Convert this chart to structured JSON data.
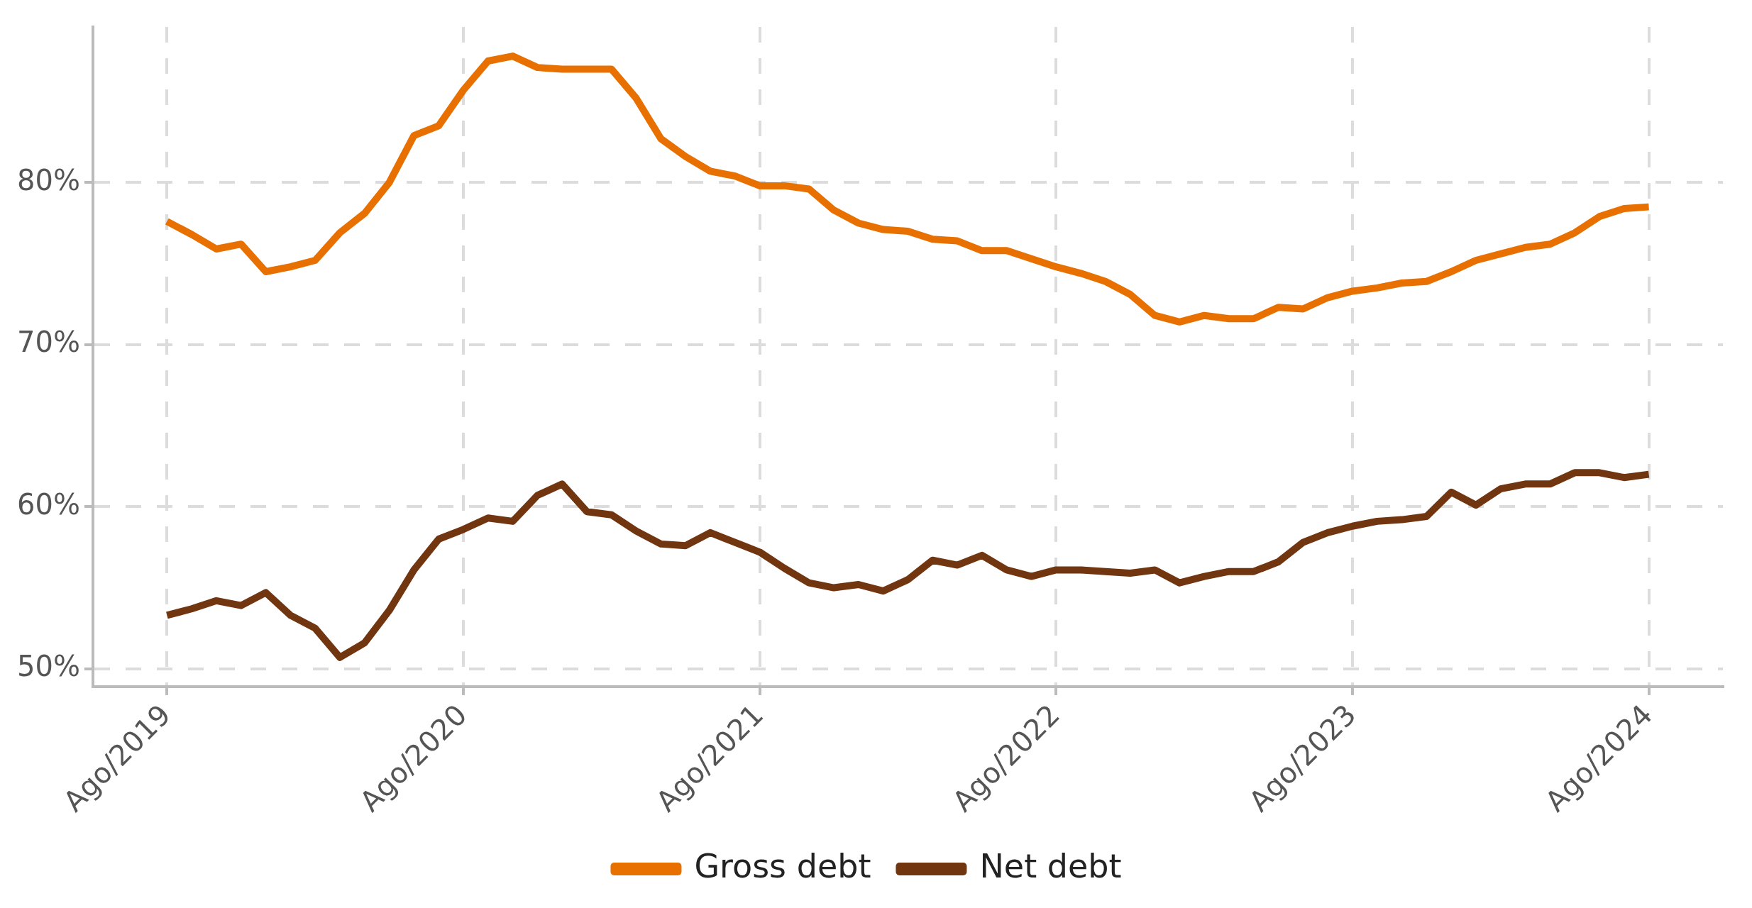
{
  "chart_data": {
    "type": "line",
    "x": [
      "2019-08",
      "2019-09",
      "2019-10",
      "2019-11",
      "2019-12",
      "2020-01",
      "2020-02",
      "2020-03",
      "2020-04",
      "2020-05",
      "2020-06",
      "2020-07",
      "2020-08",
      "2020-09",
      "2020-10",
      "2020-11",
      "2020-12",
      "2021-01",
      "2021-02",
      "2021-03",
      "2021-04",
      "2021-05",
      "2021-06",
      "2021-07",
      "2021-08",
      "2021-09",
      "2021-10",
      "2021-11",
      "2021-12",
      "2022-01",
      "2022-02",
      "2022-03",
      "2022-04",
      "2022-05",
      "2022-06",
      "2022-07",
      "2022-08",
      "2022-09",
      "2022-10",
      "2022-11",
      "2022-12",
      "2023-01",
      "2023-02",
      "2023-03",
      "2023-04",
      "2023-05",
      "2023-06",
      "2023-07",
      "2023-08",
      "2023-09",
      "2023-10",
      "2023-11",
      "2023-12",
      "2024-01",
      "2024-02",
      "2024-03",
      "2024-04",
      "2024-05",
      "2024-06",
      "2024-07",
      "2024-08"
    ],
    "series": [
      {
        "name": "Gross debt",
        "color": "#e87000",
        "values": [
          77.6,
          76.8,
          75.9,
          76.2,
          74.5,
          74.8,
          75.2,
          76.9,
          78.1,
          80.0,
          82.9,
          83.5,
          85.7,
          87.5,
          87.8,
          87.1,
          87.0,
          87.0,
          87.0,
          85.2,
          82.7,
          81.6,
          80.7,
          80.4,
          79.8,
          79.8,
          79.6,
          78.3,
          77.5,
          77.1,
          77.0,
          76.5,
          76.4,
          75.8,
          75.8,
          75.3,
          74.8,
          74.4,
          73.9,
          73.1,
          71.8,
          71.4,
          71.8,
          71.6,
          71.6,
          72.3,
          72.2,
          72.9,
          73.3,
          73.5,
          73.8,
          73.9,
          74.5,
          75.2,
          75.6,
          76.0,
          76.2,
          76.9,
          77.9,
          78.4,
          78.5
        ]
      },
      {
        "name": "Net debt",
        "color": "#713510",
        "values": [
          53.3,
          53.7,
          54.2,
          53.9,
          54.7,
          53.3,
          52.5,
          50.7,
          51.6,
          53.6,
          56.1,
          58.0,
          58.6,
          59.3,
          59.1,
          60.7,
          61.4,
          59.7,
          59.5,
          58.5,
          57.7,
          57.6,
          58.4,
          57.8,
          57.2,
          56.2,
          55.3,
          55.0,
          55.2,
          54.8,
          55.5,
          56.7,
          56.4,
          57.0,
          56.1,
          55.7,
          56.1,
          56.1,
          56.0,
          55.9,
          56.1,
          55.3,
          55.7,
          56.0,
          56.0,
          56.6,
          57.8,
          58.4,
          58.8,
          59.1,
          59.2,
          59.4,
          60.9,
          60.1,
          61.1,
          61.4,
          61.4,
          62.1,
          62.1,
          61.8,
          62.0
        ]
      }
    ],
    "xlim": [
      "2019-05",
      "2024-11"
    ],
    "xticks": [
      {
        "value": "2019-08",
        "label": "Ago/2019"
      },
      {
        "value": "2020-08",
        "label": "Ago/2020"
      },
      {
        "value": "2021-08",
        "label": "Ago/2021"
      },
      {
        "value": "2022-08",
        "label": "Ago/2022"
      },
      {
        "value": "2023-08",
        "label": "Ago/2023"
      },
      {
        "value": "2024-08",
        "label": "Ago/2024"
      }
    ],
    "ylim": [
      48.9,
      89.6
    ],
    "yticks": [
      {
        "value": 50,
        "label": "50%"
      },
      {
        "value": 60,
        "label": "60%"
      },
      {
        "value": 70,
        "label": "70%"
      },
      {
        "value": 80,
        "label": "80%"
      }
    ],
    "grid": true,
    "legend": "bottom",
    "line_style": "solid",
    "marker": "none"
  }
}
